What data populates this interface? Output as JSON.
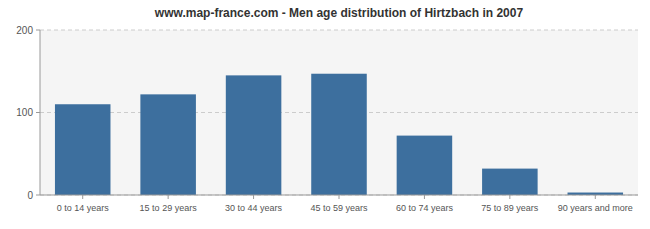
{
  "chart_data": {
    "type": "bar",
    "title": "www.map-france.com - Men age distribution of Hirtzbach in 2007",
    "categories": [
      "0 to 14 years",
      "15 to 29 years",
      "30 to 44 years",
      "45 to 59 years",
      "60 to 74 years",
      "75 to 89 years",
      "90 years and more"
    ],
    "values": [
      110,
      122,
      145,
      147,
      72,
      32,
      3
    ],
    "color": "#3d6f9e",
    "ylim": [
      0,
      200
    ],
    "yticks": [
      0,
      100,
      200
    ],
    "grid": true
  }
}
